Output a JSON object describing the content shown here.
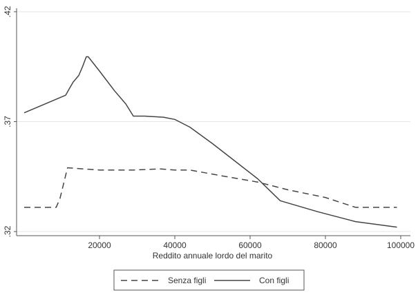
{
  "chart_data": {
    "type": "line",
    "xlabel": "Reddito annuale lordo del marito",
    "ylabel": "",
    "title": "",
    "xlim": [
      0,
      100000
    ],
    "ylim": [
      0.32,
      0.42
    ],
    "x_ticks": [
      {
        "value": 20000,
        "label": "20000"
      },
      {
        "value": 40000,
        "label": "40000"
      },
      {
        "value": 60000,
        "label": "60000"
      },
      {
        "value": 80000,
        "label": "80000"
      },
      {
        "value": 100000,
        "label": "100000"
      }
    ],
    "y_ticks": [
      {
        "value": 0.32,
        "label": ".32"
      },
      {
        "value": 0.37,
        "label": ".37"
      },
      {
        "value": 0.42,
        "label": ".42"
      }
    ],
    "grid": "horizontal",
    "legend_position": "bottom",
    "series": [
      {
        "name": "Senza figli",
        "style": "dashed",
        "color": "#444444",
        "points": [
          [
            0,
            0.331
          ],
          [
            8500,
            0.331
          ],
          [
            9500,
            0.335
          ],
          [
            11500,
            0.349
          ],
          [
            20000,
            0.348
          ],
          [
            29000,
            0.348
          ],
          [
            36000,
            0.3485
          ],
          [
            40000,
            0.348
          ],
          [
            44000,
            0.348
          ],
          [
            52000,
            0.3455
          ],
          [
            62000,
            0.3425
          ],
          [
            70000,
            0.339
          ],
          [
            80000,
            0.3355
          ],
          [
            88000,
            0.331
          ],
          [
            99000,
            0.331
          ]
        ]
      },
      {
        "name": "Con figli",
        "style": "solid",
        "color": "#444444",
        "points": [
          [
            0,
            0.374
          ],
          [
            11000,
            0.382
          ],
          [
            12000,
            0.385
          ],
          [
            13000,
            0.388
          ],
          [
            14500,
            0.391
          ],
          [
            15500,
            0.395
          ],
          [
            16500,
            0.3995
          ],
          [
            17000,
            0.3995
          ],
          [
            20000,
            0.393
          ],
          [
            24000,
            0.384
          ],
          [
            27000,
            0.378
          ],
          [
            29000,
            0.3725
          ],
          [
            32000,
            0.3725
          ],
          [
            37000,
            0.372
          ],
          [
            40000,
            0.371
          ],
          [
            44000,
            0.3675
          ],
          [
            50000,
            0.36
          ],
          [
            56000,
            0.352
          ],
          [
            62000,
            0.344
          ],
          [
            68000,
            0.334
          ],
          [
            78000,
            0.329
          ],
          [
            88000,
            0.3245
          ],
          [
            99000,
            0.322
          ]
        ]
      }
    ]
  }
}
